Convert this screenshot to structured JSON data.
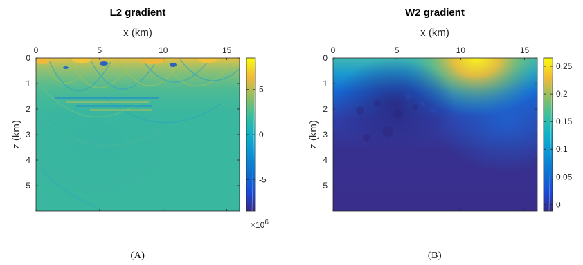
{
  "chart_data": [
    {
      "type": "heatmap",
      "title": "L2 gradient",
      "xlabel": "x (km)",
      "ylabel": "z (km)",
      "x_range": [
        0,
        16
      ],
      "y_range": [
        0,
        6
      ],
      "x_ticks": [
        0,
        5,
        10,
        15
      ],
      "y_ticks": [
        0,
        1,
        2,
        3,
        4,
        5
      ],
      "x_axis_position": "top",
      "y_axis_direction": "reversed",
      "colormap": "parula",
      "colorbar": {
        "ticks": [
          -5,
          0,
          5
        ],
        "range": [
          -8.5,
          8.5
        ],
        "multiplier_label": "×10",
        "multiplier_exponent": "6"
      },
      "caption": "(A)"
    },
    {
      "type": "heatmap",
      "title": "W2 gradient",
      "xlabel": "x (km)",
      "ylabel": "z (km)",
      "x_range": [
        0,
        16
      ],
      "y_range": [
        0,
        6
      ],
      "x_ticks": [
        0,
        5,
        10,
        15
      ],
      "y_ticks": [
        0,
        1,
        2,
        3,
        4,
        5
      ],
      "x_axis_position": "top",
      "y_axis_direction": "reversed",
      "colormap": "parula",
      "colorbar": {
        "ticks": [
          0,
          0.05,
          0.1,
          0.15,
          0.2,
          0.25
        ],
        "range": [
          -0.012,
          0.265
        ]
      },
      "caption": "(B)"
    }
  ],
  "colors": {
    "parula_dark": "#352a87",
    "parula_blue": "#0d72d1",
    "parula_teal": "#0fb1c7",
    "parula_green": "#57c37c",
    "parula_orange": "#fbba3c",
    "parula_yellow": "#f9fb0e",
    "l2_background": "#3ab79f",
    "w2_background": "#3b2d8d"
  }
}
